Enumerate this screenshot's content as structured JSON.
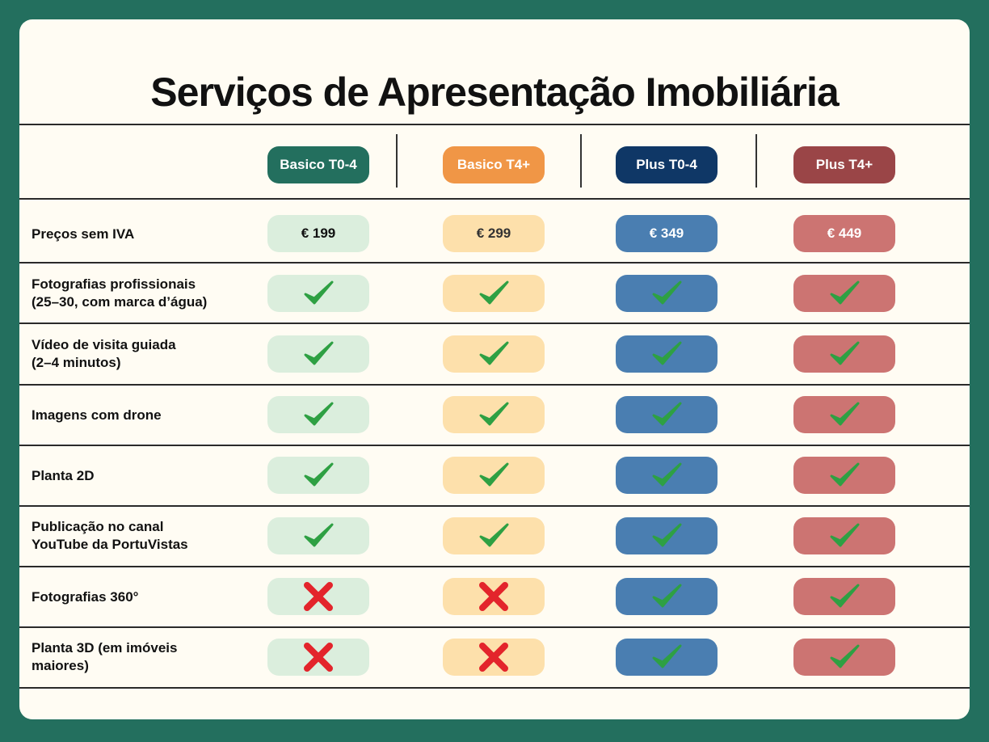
{
  "title": "Serviços de Apresentação Imobiliária",
  "colors": {
    "background": "#236f5e",
    "card": "#fffcf3",
    "check": "#2ea043",
    "cross": "#e3242b"
  },
  "plans": [
    {
      "name": "Basico T0-4",
      "price": "€ 199",
      "header_color": "#236f5e",
      "cell_color": "#dbeedd",
      "price_text_color": "#111111"
    },
    {
      "name": "Basico T4+",
      "price": "€ 299",
      "header_color": "#f09646",
      "cell_color": "#fde0ab",
      "price_text_color": "#333333"
    },
    {
      "name": "Plus T0-4",
      "price": "€ 349",
      "header_color": "#0f3766",
      "cell_color": "#4a7eb1",
      "price_text_color": "#ffffff"
    },
    {
      "name": "Plus T4+",
      "price": "€ 449",
      "header_color": "#9a4547",
      "cell_color": "#cc7472",
      "price_text_color": "#ffffff"
    }
  ],
  "price_row_label": "Preços sem IVA",
  "features": [
    {
      "label": [
        "Fotografias profissionais",
        "(25–30, com marca d’água)"
      ],
      "included": [
        true,
        true,
        true,
        true
      ]
    },
    {
      "label": [
        "Vídeo de visita guiada",
        "(2–4 minutos)"
      ],
      "included": [
        true,
        true,
        true,
        true
      ]
    },
    {
      "label": [
        "Imagens com drone"
      ],
      "included": [
        true,
        true,
        true,
        true
      ]
    },
    {
      "label": [
        "Planta 2D"
      ],
      "included": [
        true,
        true,
        true,
        true
      ]
    },
    {
      "label": [
        "Publicação no canal",
        "YouTube da PortuVistas"
      ],
      "included": [
        true,
        true,
        true,
        true
      ]
    },
    {
      "label": [
        "Fotografias 360°"
      ],
      "included": [
        false,
        false,
        true,
        true
      ]
    },
    {
      "label": [
        "Planta 3D (em imóveis",
        "maiores)"
      ],
      "included": [
        false,
        false,
        true,
        true
      ]
    }
  ]
}
